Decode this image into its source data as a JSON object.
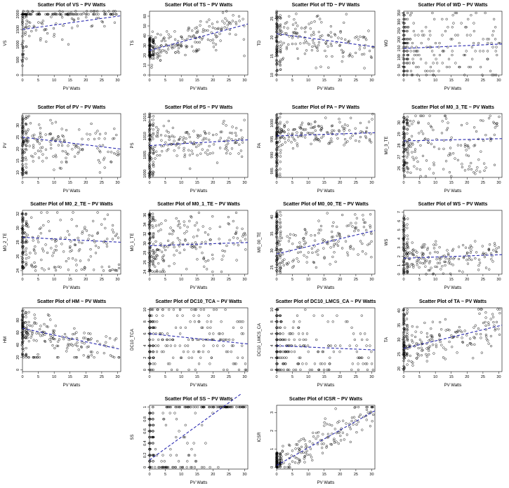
{
  "figure": {
    "background": "#ffffff",
    "point_color": "#000000",
    "trend_color": "#2b2bb0"
  },
  "chart_data": [
    {
      "type": "scatter",
      "title": "Scatter Plot of VS ~ PV Watts",
      "xlabel": "PV Watts",
      "ylabel": "VS",
      "xlim": [
        0,
        31
      ],
      "ylim": [
        0,
        2100
      ],
      "xticks": [
        0,
        5,
        10,
        15,
        20,
        25,
        30
      ],
      "yticks": [
        0,
        500,
        1000,
        1500,
        2000
      ],
      "trend": {
        "y_at_x0": 1500,
        "y_at_xmax": 1950
      },
      "cloud": {
        "seed": 1,
        "n": 230,
        "x_pattern": "spread",
        "y_mean": 1650,
        "y_sd": 380,
        "slope": 14,
        "y_clip": [
          0,
          2100
        ],
        "snap_top": 2000,
        "col_mode": "vs"
      }
    },
    {
      "type": "scatter",
      "title": "Scatter Plot of TS ~ PV Watts",
      "xlabel": "PV Watts",
      "ylabel": "TS",
      "xlim": [
        0,
        31
      ],
      "ylim": [
        0,
        65
      ],
      "xticks": [
        0,
        5,
        10,
        15,
        20,
        25,
        30
      ],
      "yticks": [
        0,
        10,
        20,
        30,
        40,
        50,
        60
      ],
      "trend": {
        "y_at_x0": 25,
        "y_at_xmax": 52
      },
      "cloud": {
        "seed": 2,
        "n": 260,
        "x_pattern": "spread",
        "y_mean": 25,
        "y_sd": 8,
        "slope": 0.9,
        "y_clip": [
          0,
          65
        ],
        "col_mode": "ts"
      }
    },
    {
      "type": "scatter",
      "title": "Scatter Plot of TD ~ PV Watts",
      "xlabel": "PV Watts",
      "ylabel": "TD",
      "xlim": [
        0,
        31
      ],
      "ylim": [
        10,
        27
      ],
      "xticks": [
        0,
        5,
        10,
        15,
        20,
        25,
        30
      ],
      "yticks": [
        10,
        15,
        20,
        25
      ],
      "trend": {
        "y_at_x0": 21,
        "y_at_xmax": 17.5
      },
      "cloud": {
        "seed": 3,
        "n": 230,
        "x_pattern": "spread",
        "y_mean": 21,
        "y_sd": 3.4,
        "slope": -0.12,
        "y_clip": [
          10,
          27
        ],
        "col_mode": "tall"
      }
    },
    {
      "type": "scatter",
      "title": "Scatter Plot of WD ~ PV Watts",
      "xlabel": "PV Watts",
      "ylabel": "WD",
      "xlim": [
        0,
        31
      ],
      "ylim": [
        0,
        360
      ],
      "xticks": [
        0,
        5,
        10,
        15,
        20,
        25,
        30
      ],
      "yticks": [
        0,
        50,
        100,
        150,
        200,
        250,
        300,
        350
      ],
      "trend": {
        "y_at_x0": 150,
        "y_at_xmax": 175
      },
      "cloud": {
        "seed": 4,
        "n": 240,
        "x_pattern": "spread",
        "y_mean": 160,
        "y_sd": 95,
        "slope": 0.8,
        "y_clip": [
          0,
          350
        ],
        "snap": 22.5,
        "col_mode": "tall"
      }
    },
    {
      "type": "scatter",
      "title": "Scatter Plot of PV ~ PV Watts",
      "xlabel": "PV Watts",
      "ylabel": "PV",
      "xlim": [
        0,
        31
      ],
      "ylim": [
        8,
        35
      ],
      "xticks": [
        0,
        5,
        10,
        15,
        20,
        25,
        30
      ],
      "yticks": [
        10,
        15,
        20,
        25,
        30
      ],
      "trend": {
        "y_at_x0": 25,
        "y_at_xmax": 20
      },
      "cloud": {
        "seed": 5,
        "n": 230,
        "x_pattern": "spread",
        "y_mean": 24,
        "y_sd": 4.8,
        "slope": -0.16,
        "y_clip": [
          8,
          34
        ],
        "col_mode": "tall"
      }
    },
    {
      "type": "scatter",
      "title": "Scatter Plot of PS ~ PV Watts",
      "xlabel": "PV Watts",
      "ylabel": "PS",
      "xlim": [
        0,
        31
      ],
      "ylim": [
        999,
        1016
      ],
      "xticks": [
        0,
        5,
        10,
        15,
        20,
        25,
        30
      ],
      "yticks": [
        1000,
        1005,
        1010,
        1015
      ],
      "trend": {
        "y_at_x0": 1007.5,
        "y_at_xmax": 1009
      },
      "cloud": {
        "seed": 6,
        "n": 240,
        "x_pattern": "spread",
        "y_mean": 1008,
        "y_sd": 2.4,
        "slope": 0.04,
        "y_clip": [
          999,
          1016
        ],
        "col_mode": "tall"
      }
    },
    {
      "type": "scatter",
      "title": "Scatter Plot of PA ~ PV Watts",
      "xlabel": "PV Watts",
      "ylabel": "PA",
      "xlim": [
        0,
        31
      ],
      "ylim": [
        983,
        1003
      ],
      "xticks": [
        0,
        5,
        10,
        15,
        20,
        25,
        30
      ],
      "yticks": [
        985,
        990,
        995,
        1000
      ],
      "trend": {
        "y_at_x0": 996,
        "y_at_xmax": 997
      },
      "cloud": {
        "seed": 7,
        "n": 240,
        "x_pattern": "spread",
        "y_mean": 996.5,
        "y_sd": 2.3,
        "slope": 0.03,
        "y_clip": [
          983,
          1003
        ],
        "col_mode": "tall"
      }
    },
    {
      "type": "scatter",
      "title": "Scatter Plot of M0_3_TE ~ PV Watts",
      "xlabel": "PV Watts",
      "ylabel": "M0_3_TE",
      "xlim": [
        0,
        31
      ],
      "ylim": [
        25.2,
        30.8
      ],
      "xticks": [
        0,
        5,
        10,
        15,
        20,
        25,
        30
      ],
      "yticks": [
        26,
        27,
        28,
        29,
        30
      ],
      "trend": {
        "y_at_x0": 28.4,
        "y_at_xmax": 28.6
      },
      "cloud": {
        "seed": 8,
        "n": 230,
        "x_pattern": "spread",
        "y_mean": 28.4,
        "y_sd": 1.5,
        "slope": 0.005,
        "y_clip": [
          25.3,
          30.6
        ],
        "col_mode": "tall",
        "bimodal": [
          26,
          29.8
        ]
      }
    },
    {
      "type": "scatter",
      "title": "Scatter Plot of M0_2_TE ~ PV Watts",
      "xlabel": "PV Watts",
      "ylabel": "M0_2_TE",
      "xlim": [
        0,
        31
      ],
      "ylim": [
        23.5,
        32.5
      ],
      "xticks": [
        0,
        5,
        10,
        15,
        20,
        25,
        30
      ],
      "yticks": [
        24,
        26,
        28,
        30,
        32
      ],
      "trend": {
        "y_at_x0": 28.7,
        "y_at_xmax": 28
      },
      "cloud": {
        "seed": 9,
        "n": 230,
        "x_pattern": "spread",
        "y_mean": 28.5,
        "y_sd": 2.1,
        "slope": -0.02,
        "y_clip": [
          24,
          32.2
        ],
        "col_mode": "tall",
        "bimodal": [
          24.4,
          30.3
        ]
      }
    },
    {
      "type": "scatter",
      "title": "Scatter Plot of M0_1_TE ~ PV Watts",
      "xlabel": "PV Watts",
      "ylabel": "M0_1_TE",
      "xlim": [
        0,
        31
      ],
      "ylim": [
        23.5,
        37
      ],
      "xticks": [
        0,
        5,
        10,
        15,
        20,
        25,
        30
      ],
      "yticks": [
        24,
        26,
        28,
        30,
        32,
        34,
        36
      ],
      "trend": {
        "y_at_x0": 29.5,
        "y_at_xmax": 30.2
      },
      "cloud": {
        "seed": 10,
        "n": 240,
        "x_pattern": "spread",
        "y_mean": 29.5,
        "y_sd": 3,
        "slope": 0.03,
        "y_clip": [
          24,
          36.5
        ],
        "col_mode": "tall"
      }
    },
    {
      "type": "scatter",
      "title": "Scatter Plot of M0_00_TE ~ PV Watts",
      "xlabel": "PV Watts",
      "ylabel": "M0_00_TE",
      "xlim": [
        0,
        31
      ],
      "ylim": [
        23,
        42
      ],
      "xticks": [
        0,
        5,
        10,
        15,
        20,
        25,
        30
      ],
      "yticks": [
        25,
        30,
        35,
        40
      ],
      "trend": {
        "y_at_x0": 29,
        "y_at_xmax": 36
      },
      "cloud": {
        "seed": 11,
        "n": 240,
        "x_pattern": "spread",
        "y_mean": 29,
        "y_sd": 3.6,
        "slope": 0.24,
        "y_clip": [
          23.5,
          41.5
        ],
        "col_mode": "tall"
      }
    },
    {
      "type": "scatter",
      "title": "Scatter Plot of WS ~ PV Watts",
      "xlabel": "PV Watts",
      "ylabel": "WS",
      "xlim": [
        0,
        31
      ],
      "ylim": [
        0,
        7.2
      ],
      "xticks": [
        0,
        5,
        10,
        15,
        20,
        25,
        30
      ],
      "yticks": [
        0,
        1,
        2,
        3,
        4,
        5,
        6,
        7
      ],
      "trend": {
        "y_at_x0": 1.8,
        "y_at_xmax": 2.2
      },
      "cloud": {
        "seed": 12,
        "n": 240,
        "x_pattern": "spread",
        "y_mean": 1.8,
        "y_sd": 0.9,
        "slope": 0.013,
        "y_clip": [
          0,
          6.8
        ],
        "col_mode": "tall"
      }
    },
    {
      "type": "scatter",
      "title": "Scatter Plot of HM ~ PV Watts",
      "xlabel": "PV Watts",
      "ylabel": "HM",
      "xlim": [
        0,
        31
      ],
      "ylim": [
        -3,
        100
      ],
      "xticks": [
        0,
        5,
        10,
        15,
        20,
        25,
        30
      ],
      "yticks": [
        0,
        20,
        40,
        60,
        80
      ],
      "trend": {
        "y_at_x0": 67,
        "y_at_xmax": 33
      },
      "cloud": {
        "seed": 13,
        "n": 240,
        "x_pattern": "spread",
        "y_mean": 66,
        "y_sd": 14,
        "slope": -1.15,
        "y_clip": [
          20,
          98
        ],
        "col_mode": "tall",
        "zeros": 0.1
      }
    },
    {
      "type": "scatter",
      "title": "Scatter Plot of DC10_TCA ~ PV Watts",
      "xlabel": "PV Watts",
      "ylabel": "DC10_TCA",
      "xlim": [
        0,
        31
      ],
      "ylim": [
        -0.3,
        10.3
      ],
      "xticks": [
        0,
        5,
        10,
        15,
        20,
        25,
        30
      ],
      "yticks": [
        0,
        2,
        4,
        6,
        8,
        10
      ],
      "trend": {
        "y_at_x0": 6,
        "y_at_xmax": 4.3
      },
      "cloud": {
        "seed": 14,
        "n": 240,
        "x_pattern": "spread",
        "y_mean": 6,
        "y_sd": 3.2,
        "slope": -0.06,
        "y_clip": [
          0,
          10
        ],
        "snap": 1,
        "col_mode": "tall"
      }
    },
    {
      "type": "scatter",
      "title": "Scatter Plot of DC10_LMCS_CA ~ PV Watts",
      "xlabel": "PV Watts",
      "ylabel": "DC10_LMCS_CA",
      "xlim": [
        0,
        31
      ],
      "ylim": [
        -0.3,
        10.3
      ],
      "xticks": [
        0,
        5,
        10,
        15,
        20,
        25,
        30
      ],
      "yticks": [
        0,
        2,
        4,
        6,
        8,
        10
      ],
      "trend": {
        "y_at_x0": 4,
        "y_at_xmax": 3.3
      },
      "cloud": {
        "seed": 15,
        "n": 240,
        "x_pattern": "spread",
        "y_mean": 4,
        "y_sd": 2.9,
        "slope": -0.025,
        "y_clip": [
          0,
          10
        ],
        "snap": 1,
        "col_mode": "tall"
      }
    },
    {
      "type": "scatter",
      "title": "Scatter Plot of TA ~ PV Watts",
      "xlabel": "PV Watts",
      "ylabel": "TA",
      "xlim": [
        0,
        31
      ],
      "ylim": [
        19,
        41
      ],
      "xticks": [
        0,
        5,
        10,
        15,
        20,
        25,
        30
      ],
      "yticks": [
        20,
        25,
        30,
        35,
        40
      ],
      "trend": {
        "y_at_x0": 27,
        "y_at_xmax": 35
      },
      "cloud": {
        "seed": 16,
        "n": 250,
        "x_pattern": "spread",
        "y_mean": 26.5,
        "y_sd": 3.5,
        "slope": 0.27,
        "y_clip": [
          19.5,
          40.5
        ],
        "col_mode": "tall"
      }
    },
    {
      "type": "scatter",
      "title": "Scatter Plot of SS ~ PV Watts",
      "xlabel": "PV Watts",
      "ylabel": "SS",
      "xlim": [
        0,
        31
      ],
      "ylim": [
        -0.03,
        1.03
      ],
      "xticks": [
        0,
        5,
        10,
        15,
        20,
        25,
        30
      ],
      "yticks": [
        0.0,
        0.2,
        0.4,
        0.6,
        0.8,
        1.0
      ],
      "trend": {
        "y_at_x0": 0.12,
        "y_at_xmax": 1.3
      },
      "cloud": {
        "seed": 17,
        "n": 240,
        "x_pattern": "spread",
        "y_mean": 0.3,
        "y_sd": 0.3,
        "slope": 0.03,
        "y_clip": [
          0,
          1
        ],
        "snap": 0.1,
        "col_mode": "tall",
        "ss": true
      }
    },
    {
      "type": "scatter",
      "title": "Scatter Plot of ICSR ~ PV Watts",
      "xlabel": "PV Watts",
      "ylabel": "ICSR",
      "xlim": [
        0,
        31
      ],
      "ylim": [
        -0.1,
        3.4
      ],
      "xticks": [
        0,
        5,
        10,
        15,
        20,
        25,
        30
      ],
      "yticks": [
        0.0,
        1.0,
        2.0,
        3.0
      ],
      "trend": {
        "y_at_x0": 0.1,
        "y_at_xmax": 3.1
      },
      "cloud": {
        "seed": 18,
        "n": 240,
        "x_pattern": "spread",
        "y_mean": 0.15,
        "y_sd": 0.45,
        "slope": 0.095,
        "y_clip": [
          0,
          3.3
        ],
        "col_mode": "low"
      }
    }
  ]
}
